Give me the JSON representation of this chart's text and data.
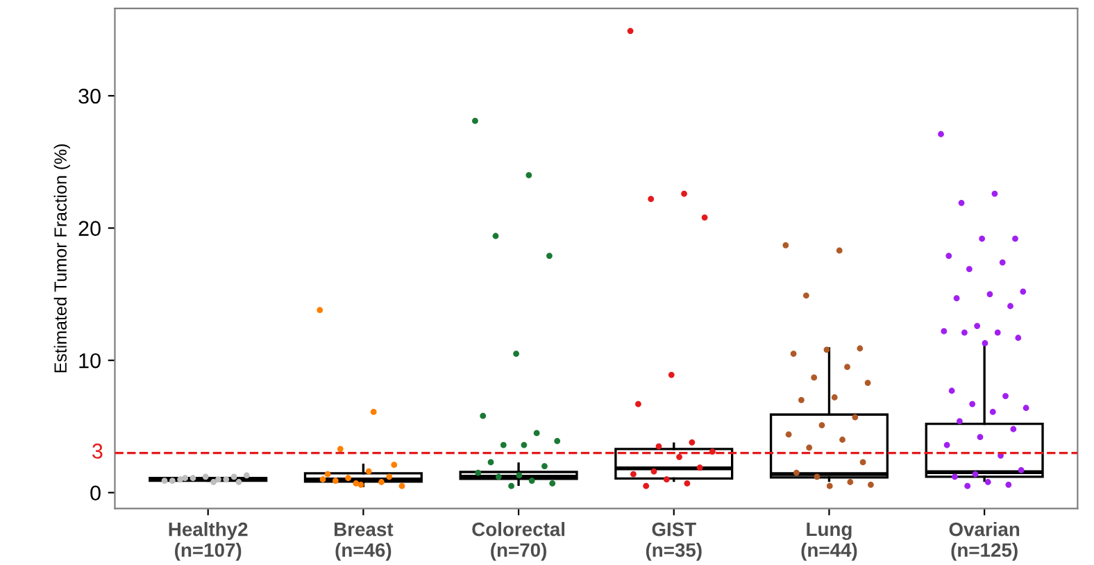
{
  "chart_data": {
    "type": "box",
    "ylabel": "Estimated Tumor Fraction (%)",
    "categories": [
      "Healthy2\n(n=107)",
      "Breast\n(n=46)",
      "Colorectal\n(n=70)",
      "GIST\n(n=35)",
      "Lung\n(n=44)",
      "Ovarian\n(n=125)"
    ],
    "boxes": [
      {
        "low": 0.9,
        "q1": 0.9,
        "median": 1.0,
        "q3": 1.1,
        "high": 1.1
      },
      {
        "low": 0.5,
        "q1": 0.83,
        "median": 1.0,
        "q3": 1.46,
        "high": 2.1
      },
      {
        "low": 0.6,
        "q1": 1.04,
        "median": 1.2,
        "q3": 1.56,
        "high": 2.2
      },
      {
        "low": 0.9,
        "q1": 1.07,
        "median": 1.84,
        "q3": 3.3,
        "high": 3.7
      },
      {
        "low": 0.9,
        "q1": 1.15,
        "median": 1.4,
        "q3": 5.9,
        "high": 10.9
      },
      {
        "low": 0.9,
        "q1": 1.2,
        "median": 1.55,
        "q3": 5.2,
        "high": 11.1
      }
    ],
    "series": [
      {
        "type": "scatter",
        "color": "#bdbdbd",
        "x": [
          "Healthy2\n(n=107)",
          "Healthy2\n(n=107)",
          "Healthy2\n(n=107)",
          "Healthy2\n(n=107)",
          "Healthy2\n(n=107)",
          "Healthy2\n(n=107)",
          "Healthy2\n(n=107)",
          "Healthy2\n(n=107)",
          "Healthy2\n(n=107)",
          "Healthy2\n(n=107)",
          "Healthy2\n(n=107)",
          "Healthy2\n(n=107)"
        ],
        "values": [
          0.9,
          1.0,
          1.1,
          0.8,
          1.2,
          0.9,
          1.0,
          1.1,
          1.3,
          0.8,
          1.0,
          1.2
        ]
      },
      {
        "type": "scatter",
        "color": "#ff7f00",
        "x": [
          "Breast\n(n=46)",
          "Breast\n(n=46)",
          "Breast\n(n=46)",
          "Breast\n(n=46)",
          "Breast\n(n=46)",
          "Breast\n(n=46)",
          "Breast\n(n=46)",
          "Breast\n(n=46)",
          "Breast\n(n=46)",
          "Breast\n(n=46)",
          "Breast\n(n=46)",
          "Breast\n(n=46)",
          "Breast\n(n=46)",
          "Breast\n(n=46)"
        ],
        "values": [
          13.8,
          6.1,
          3.3,
          2.1,
          0.6,
          1.4,
          0.8,
          1.1,
          0.5,
          1.6,
          0.9,
          1.2,
          0.7,
          1.0
        ]
      },
      {
        "type": "scatter",
        "color": "#1a7a35",
        "x": [
          "Colorectal\n(n=70)",
          "Colorectal\n(n=70)",
          "Colorectal\n(n=70)",
          "Colorectal\n(n=70)",
          "Colorectal\n(n=70)",
          "Colorectal\n(n=70)",
          "Colorectal\n(n=70)",
          "Colorectal\n(n=70)",
          "Colorectal\n(n=70)",
          "Colorectal\n(n=70)",
          "Colorectal\n(n=70)",
          "Colorectal\n(n=70)",
          "Colorectal\n(n=70)",
          "Colorectal\n(n=70)",
          "Colorectal\n(n=70)",
          "Colorectal\n(n=70)",
          "Colorectal\n(n=70)",
          "Colorectal\n(n=70)"
        ],
        "values": [
          28.1,
          24.0,
          19.4,
          17.9,
          10.5,
          5.8,
          4.5,
          3.6,
          3.9,
          3.6,
          2.3,
          2.0,
          0.5,
          1.5,
          0.9,
          1.2,
          0.7,
          1.3
        ]
      },
      {
        "type": "scatter",
        "color": "#e41a1c",
        "x": [
          "GIST\n(n=35)",
          "GIST\n(n=35)",
          "GIST\n(n=35)",
          "GIST\n(n=35)",
          "GIST\n(n=35)",
          "GIST\n(n=35)",
          "GIST\n(n=35)",
          "GIST\n(n=35)",
          "GIST\n(n=35)",
          "GIST\n(n=35)",
          "GIST\n(n=35)",
          "GIST\n(n=35)",
          "GIST\n(n=35)",
          "GIST\n(n=35)",
          "GIST\n(n=35)",
          "GIST\n(n=35)"
        ],
        "values": [
          34.9,
          22.6,
          22.2,
          20.8,
          8.9,
          6.7,
          3.8,
          3.5,
          3.1,
          2.7,
          0.5,
          1.9,
          1.0,
          1.4,
          0.7,
          1.6
        ]
      },
      {
        "type": "scatter",
        "color": "#b05a28",
        "x": [
          "Lung\n(n=44)",
          "Lung\n(n=44)",
          "Lung\n(n=44)",
          "Lung\n(n=44)",
          "Lung\n(n=44)",
          "Lung\n(n=44)",
          "Lung\n(n=44)",
          "Lung\n(n=44)",
          "Lung\n(n=44)",
          "Lung\n(n=44)",
          "Lung\n(n=44)",
          "Lung\n(n=44)",
          "Lung\n(n=44)",
          "Lung\n(n=44)",
          "Lung\n(n=44)",
          "Lung\n(n=44)",
          "Lung\n(n=44)",
          "Lung\n(n=44)",
          "Lung\n(n=44)",
          "Lung\n(n=44)",
          "Lung\n(n=44)",
          "Lung\n(n=44)"
        ],
        "values": [
          18.7,
          18.3,
          14.9,
          10.9,
          10.8,
          10.5,
          9.5,
          8.7,
          8.3,
          7.2,
          7.0,
          5.7,
          5.1,
          4.4,
          4.0,
          3.4,
          2.3,
          0.5,
          1.5,
          0.8,
          1.2,
          0.6
        ]
      },
      {
        "type": "scatter",
        "color": "#a020f0",
        "x": [
          "Ovarian\n(n=125)",
          "Ovarian\n(n=125)",
          "Ovarian\n(n=125)",
          "Ovarian\n(n=125)",
          "Ovarian\n(n=125)",
          "Ovarian\n(n=125)",
          "Ovarian\n(n=125)",
          "Ovarian\n(n=125)",
          "Ovarian\n(n=125)",
          "Ovarian\n(n=125)",
          "Ovarian\n(n=125)",
          "Ovarian\n(n=125)",
          "Ovarian\n(n=125)",
          "Ovarian\n(n=125)",
          "Ovarian\n(n=125)",
          "Ovarian\n(n=125)",
          "Ovarian\n(n=125)",
          "Ovarian\n(n=125)",
          "Ovarian\n(n=125)",
          "Ovarian\n(n=125)",
          "Ovarian\n(n=125)",
          "Ovarian\n(n=125)",
          "Ovarian\n(n=125)",
          "Ovarian\n(n=125)",
          "Ovarian\n(n=125)",
          "Ovarian\n(n=125)",
          "Ovarian\n(n=125)",
          "Ovarian\n(n=125)",
          "Ovarian\n(n=125)",
          "Ovarian\n(n=125)",
          "Ovarian\n(n=125)",
          "Ovarian\n(n=125)",
          "Ovarian\n(n=125)",
          "Ovarian\n(n=125)"
        ],
        "values": [
          27.1,
          22.6,
          21.9,
          19.2,
          19.2,
          17.9,
          17.4,
          16.9,
          15.2,
          15.0,
          14.7,
          14.1,
          12.6,
          12.2,
          12.1,
          12.1,
          11.7,
          11.3,
          7.7,
          7.3,
          6.7,
          6.4,
          6.1,
          5.4,
          4.8,
          4.2,
          3.6,
          2.8,
          0.5,
          1.7,
          0.8,
          1.2,
          0.6,
          1.4
        ]
      }
    ],
    "ylim": [
      -1.2,
      36.6
    ],
    "yticks": [
      0,
      10,
      20,
      30
    ],
    "ref_lines": [
      {
        "axis": "y",
        "value": 3,
        "label": "3",
        "color": "#e41a1c",
        "line_style": "dashed"
      }
    ],
    "grid": false,
    "legend": false
  }
}
